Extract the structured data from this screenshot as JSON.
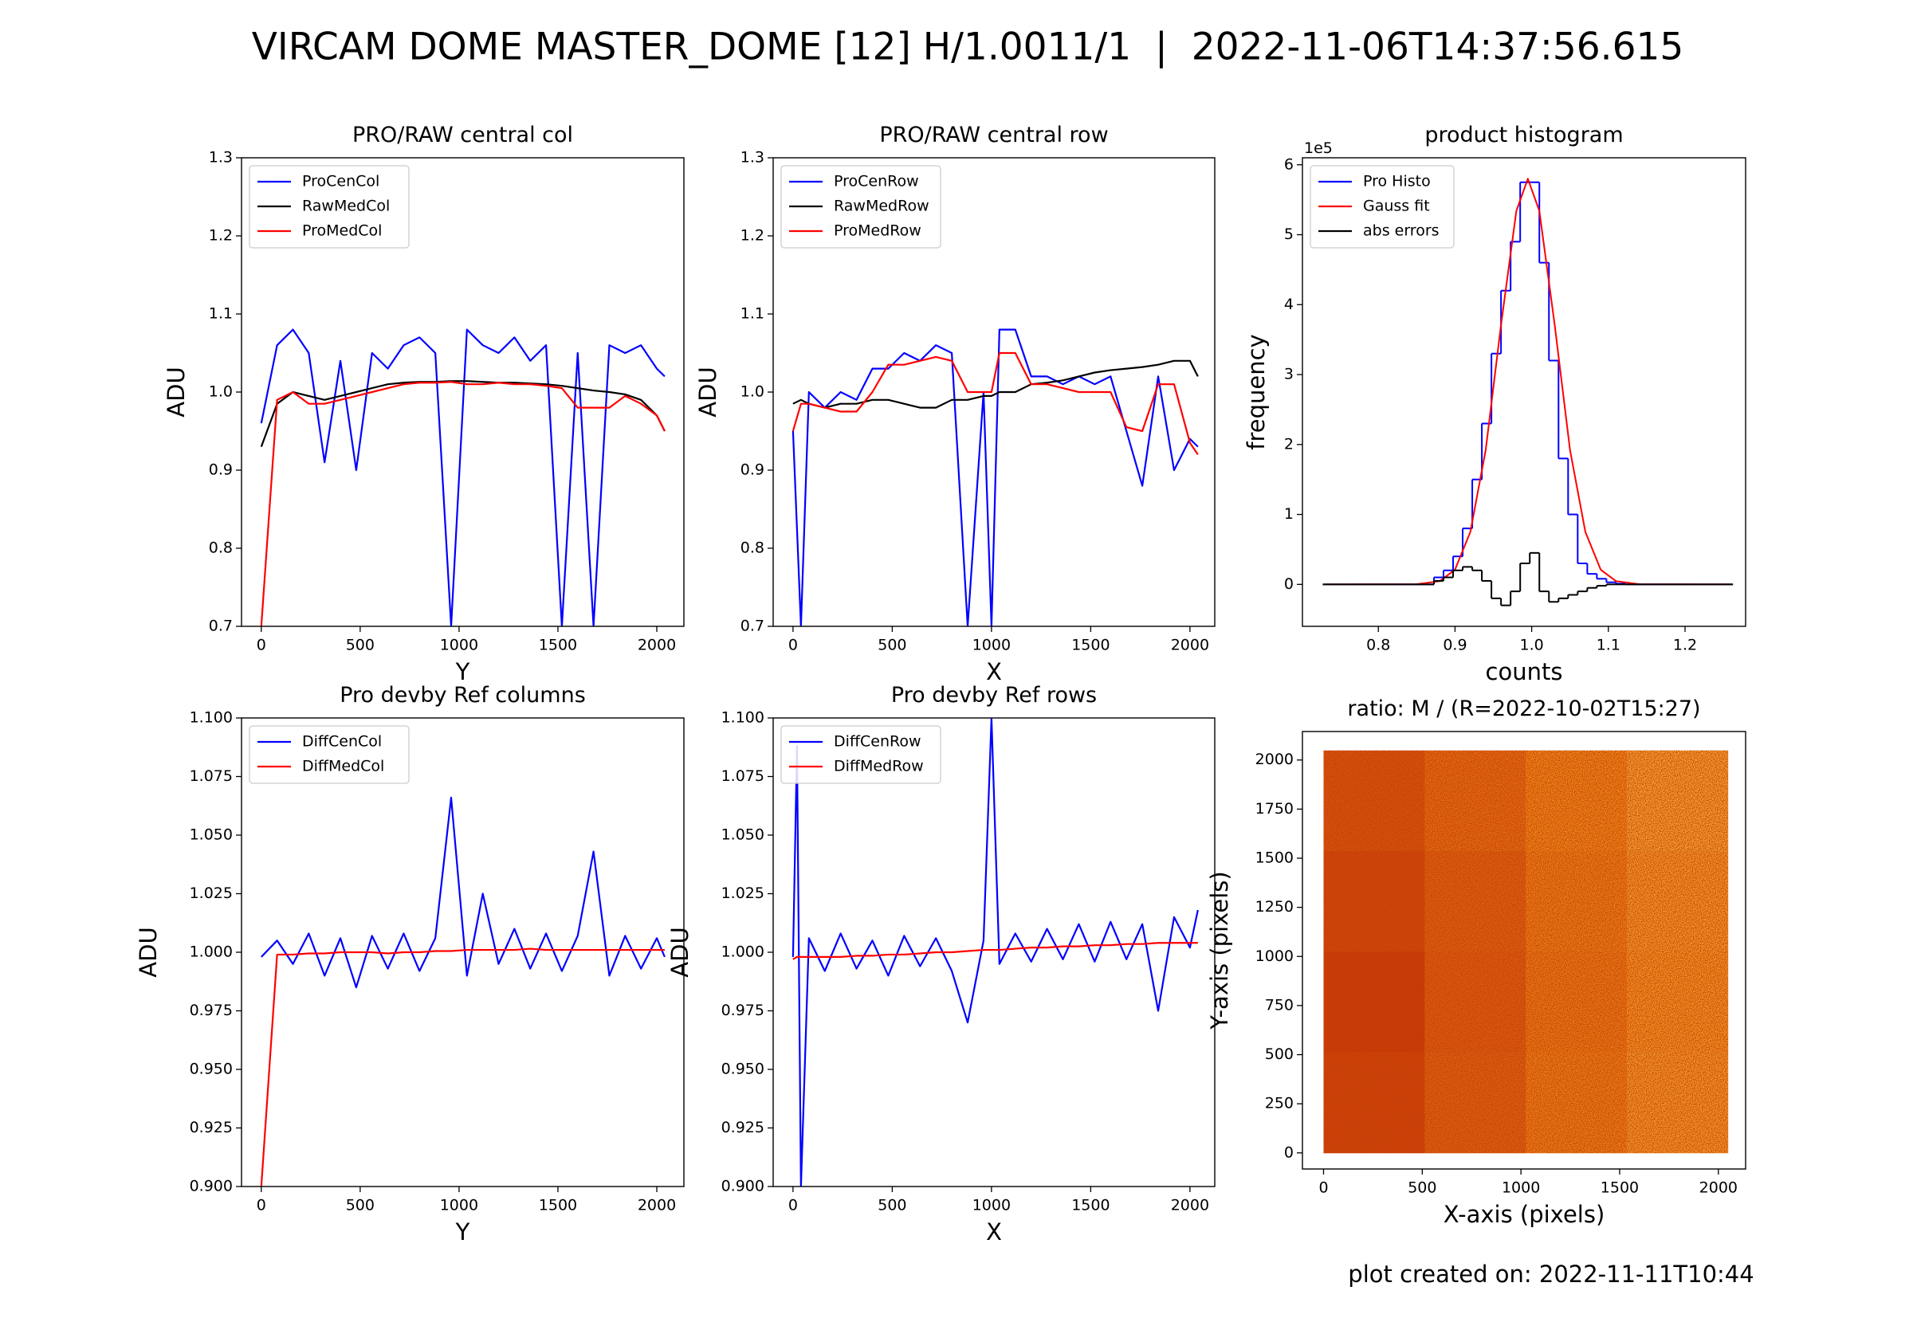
{
  "title": "VIRCAM DOME MASTER_DOME [12] H/1.0011/1  |  2022-11-06T14:37:56.615",
  "footer": "plot created on: 2022-11-11T10:44",
  "chart_data": [
    {
      "type": "line",
      "title": "PRO/RAW central col",
      "xlabel": "Y",
      "ylabel": "ADU",
      "legend": "upper left",
      "xlim": [
        -100,
        2137
      ],
      "ylim": [
        0.7,
        1.3
      ],
      "xticks": [
        0,
        500,
        1000,
        1500,
        2000
      ],
      "yticks": [
        0.7,
        0.8,
        0.9,
        {
          "value": 1,
          "label": "1.0"
        },
        1.1,
        1.2,
        1.3
      ],
      "x": [
        0,
        80,
        160,
        240,
        320,
        400,
        480,
        560,
        640,
        720,
        800,
        880,
        960,
        1040,
        1120,
        1200,
        1280,
        1360,
        1440,
        1520,
        1600,
        1680,
        1760,
        1840,
        1920,
        2000,
        2040
      ],
      "series": [
        {
          "name": "ProCenCol",
          "color": "#0000ff",
          "values": [
            0.96,
            1.06,
            1.08,
            1.05,
            0.91,
            1.04,
            0.9,
            1.05,
            1.03,
            1.06,
            1.07,
            1.05,
            0.7,
            1.08,
            1.06,
            1.05,
            1.07,
            1.04,
            1.06,
            0.7,
            1.05,
            0.7,
            1.06,
            1.05,
            1.06,
            1.03,
            1.02
          ]
        },
        {
          "name": "RawMedCol",
          "color": "#000000",
          "values": [
            0.93,
            0.985,
            1.0,
            0.995,
            0.99,
            0.995,
            1.0,
            1.005,
            1.01,
            1.012,
            1.013,
            1.013,
            1.014,
            1.014,
            1.013,
            1.012,
            1.012,
            1.011,
            1.01,
            1.008,
            1.005,
            1.002,
            1.0,
            0.997,
            0.99,
            0.97,
            0.95
          ]
        },
        {
          "name": "ProMedCol",
          "color": "#ff0000",
          "values": [
            0.7,
            0.99,
            1.0,
            0.985,
            0.985,
            0.99,
            0.995,
            1.0,
            1.005,
            1.01,
            1.012,
            1.012,
            1.013,
            1.01,
            1.01,
            1.012,
            1.01,
            1.01,
            1.008,
            1.005,
            0.98,
            0.98,
            0.98,
            0.995,
            0.985,
            0.97,
            0.95
          ]
        }
      ]
    },
    {
      "type": "line",
      "title": "PRO/RAW central row",
      "xlabel": "X",
      "ylabel": "ADU",
      "legend": "upper left",
      "xlim": [
        -100,
        2125
      ],
      "ylim": [
        0.7,
        1.3
      ],
      "xticks": [
        0,
        500,
        1000,
        1500,
        2000
      ],
      "yticks": [
        0.7,
        0.8,
        0.9,
        {
          "value": 1,
          "label": "1.0"
        },
        1.1,
        1.2,
        1.3
      ],
      "x": [
        0,
        40,
        80,
        160,
        240,
        320,
        400,
        480,
        560,
        640,
        720,
        800,
        880,
        960,
        1000,
        1040,
        1120,
        1200,
        1280,
        1360,
        1440,
        1520,
        1600,
        1680,
        1760,
        1840,
        1920,
        2000,
        2040
      ],
      "series": [
        {
          "name": "ProCenRow",
          "color": "#0000ff",
          "values": [
            0.95,
            0.7,
            1.0,
            0.98,
            1.0,
            0.99,
            1.03,
            1.03,
            1.05,
            1.04,
            1.06,
            1.05,
            0.7,
            1.0,
            0.7,
            1.08,
            1.08,
            1.02,
            1.02,
            1.01,
            1.02,
            1.01,
            1.02,
            0.95,
            0.88,
            1.02,
            0.9,
            0.94,
            0.93
          ]
        },
        {
          "name": "RawMedRow",
          "color": "#000000",
          "values": [
            0.985,
            0.99,
            0.985,
            0.98,
            0.985,
            0.985,
            0.99,
            0.99,
            0.985,
            0.98,
            0.98,
            0.99,
            0.99,
            0.995,
            0.995,
            1.0,
            1.0,
            1.01,
            1.012,
            1.015,
            1.02,
            1.025,
            1.028,
            1.03,
            1.032,
            1.035,
            1.04,
            1.04,
            1.02
          ]
        },
        {
          "name": "ProMedRow",
          "color": "#ff0000",
          "values": [
            0.95,
            0.985,
            0.985,
            0.98,
            0.975,
            0.975,
            1.0,
            1.035,
            1.035,
            1.04,
            1.045,
            1.04,
            1.0,
            1.0,
            1.0,
            1.05,
            1.05,
            1.01,
            1.01,
            1.005,
            1.0,
            1.0,
            1.0,
            0.955,
            0.95,
            1.01,
            1.01,
            0.935,
            0.92
          ]
        }
      ]
    },
    {
      "type": "histogram",
      "title": "product histogram",
      "xlabel": "counts",
      "ylabel": "frequency",
      "y_offset_label": "1e5",
      "legend": "upper left",
      "xlim": [
        0.701,
        1.279
      ],
      "ylim": [
        -0.6,
        6.1
      ],
      "xticks": [
        0.8,
        0.9,
        {
          "value": 1,
          "label": "1.0"
        },
        1.1,
        1.2
      ],
      "yticks": [
        0,
        1,
        2,
        3,
        4,
        5,
        6
      ],
      "bins": [
        0.7275,
        0.8725,
        0.885,
        0.8975,
        0.91,
        0.9225,
        0.935,
        0.9475,
        0.96,
        0.9725,
        0.985,
        0.9975,
        1.01,
        1.0225,
        1.035,
        1.0475,
        1.06,
        1.0725,
        1.085,
        1.0975,
        1.11,
        1.1225,
        1.2625
      ],
      "series": [
        {
          "name": "Pro Histo",
          "color": "#0000ff",
          "values": [
            0,
            0.1,
            0.2,
            0.4,
            0.8,
            1.5,
            2.3,
            3.3,
            4.2,
            4.9,
            5.75,
            5.75,
            4.6,
            3.2,
            1.8,
            1.0,
            0.3,
            0.15,
            0.08,
            0.03,
            0.01,
            0
          ]
        },
        {
          "name": "Gauss fit",
          "color": "#ff0000",
          "x": [
            0.73,
            0.85,
            0.88,
            0.9,
            0.92,
            0.94,
            0.96,
            0.98,
            0.995,
            1.01,
            1.03,
            1.05,
            1.07,
            1.09,
            1.11,
            1.14,
            1.26
          ],
          "values": [
            0,
            0.003,
            0.046,
            0.21,
            0.75,
            1.92,
            3.71,
            5.34,
            5.8,
            5.34,
            3.71,
            1.92,
            0.75,
            0.21,
            0.046,
            0.003,
            0
          ]
        },
        {
          "name": "abs errors",
          "color": "#000000",
          "values": [
            0,
            0.05,
            0.1,
            0.2,
            0.25,
            0.2,
            0.05,
            -0.2,
            -0.3,
            -0.1,
            0.3,
            0.45,
            -0.1,
            -0.25,
            -0.2,
            -0.15,
            -0.1,
            -0.05,
            -0.02,
            0,
            0,
            0
          ]
        }
      ]
    },
    {
      "type": "line",
      "title": "Pro devby Ref columns",
      "xlabel": "Y",
      "ylabel": "ADU",
      "legend": "upper left",
      "xlim": [
        -100,
        2137
      ],
      "ylim": [
        0.9,
        1.1
      ],
      "xticks": [
        0,
        500,
        1000,
        1500,
        2000
      ],
      "yticks": [
        {
          "value": 0.9,
          "label": "0.900"
        },
        {
          "value": 0.925,
          "label": "0.925"
        },
        {
          "value": 0.95,
          "label": "0.950"
        },
        {
          "value": 0.975,
          "label": "0.975"
        },
        {
          "value": 1,
          "label": "1.000"
        },
        {
          "value": 1.025,
          "label": "1.025"
        },
        {
          "value": 1.05,
          "label": "1.050"
        },
        {
          "value": 1.075,
          "label": "1.075"
        },
        {
          "value": 1.1,
          "label": "1.100"
        }
      ],
      "x": [
        0,
        80,
        160,
        240,
        320,
        400,
        480,
        560,
        640,
        720,
        800,
        880,
        960,
        1040,
        1120,
        1200,
        1280,
        1360,
        1440,
        1520,
        1600,
        1680,
        1760,
        1840,
        1920,
        2000,
        2040
      ],
      "series": [
        {
          "name": "DiffCenCol",
          "color": "#0000ff",
          "values": [
            0.998,
            1.005,
            0.995,
            1.008,
            0.99,
            1.006,
            0.985,
            1.007,
            0.993,
            1.008,
            0.992,
            1.006,
            1.066,
            0.99,
            1.025,
            0.995,
            1.01,
            0.993,
            1.008,
            0.992,
            1.007,
            1.043,
            0.99,
            1.007,
            0.993,
            1.006,
            0.998
          ]
        },
        {
          "name": "DiffMedCol",
          "color": "#ff0000",
          "values": [
            0.9,
            0.999,
            0.999,
            0.9995,
            0.9995,
            1.0,
            1.0,
            1.0,
            0.9995,
            1.0,
            1.0,
            1.0005,
            1.0005,
            1.001,
            1.001,
            1.001,
            1.001,
            1.0015,
            1.001,
            1.001,
            1.001,
            1.001,
            1.001,
            1.001,
            1.001,
            1.001,
            1.001
          ]
        }
      ]
    },
    {
      "type": "line",
      "title": "Pro devby Ref rows",
      "xlabel": "X",
      "ylabel": "ADU",
      "legend": "upper left",
      "xlim": [
        -100,
        2125
      ],
      "ylim": [
        0.9,
        1.1
      ],
      "xticks": [
        0,
        500,
        1000,
        1500,
        2000
      ],
      "yticks": [
        {
          "value": 0.9,
          "label": "0.900"
        },
        {
          "value": 0.925,
          "label": "0.925"
        },
        {
          "value": 0.95,
          "label": "0.950"
        },
        {
          "value": 0.975,
          "label": "0.975"
        },
        {
          "value": 1,
          "label": "1.000"
        },
        {
          "value": 1.025,
          "label": "1.025"
        },
        {
          "value": 1.05,
          "label": "1.050"
        },
        {
          "value": 1.075,
          "label": "1.075"
        },
        {
          "value": 1.1,
          "label": "1.100"
        }
      ],
      "x": [
        0,
        20,
        40,
        80,
        160,
        240,
        320,
        400,
        480,
        560,
        640,
        720,
        800,
        880,
        960,
        1000,
        1040,
        1120,
        1200,
        1280,
        1360,
        1440,
        1520,
        1600,
        1680,
        1760,
        1840,
        1920,
        2000,
        2040
      ],
      "series": [
        {
          "name": "DiffCenRow",
          "color": "#0000ff",
          "values": [
            0.998,
            1.088,
            0.9,
            1.006,
            0.992,
            1.008,
            0.993,
            1.005,
            0.99,
            1.007,
            0.994,
            1.006,
            0.992,
            0.97,
            1.005,
            1.1,
            0.995,
            1.008,
            0.996,
            1.01,
            0.997,
            1.012,
            0.996,
            1.013,
            0.997,
            1.012,
            0.975,
            1.015,
            1.002,
            1.018
          ]
        },
        {
          "name": "DiffMedRow",
          "color": "#ff0000",
          "values": [
            0.997,
            0.998,
            0.998,
            0.998,
            0.998,
            0.998,
            0.9985,
            0.9985,
            0.999,
            0.999,
            0.9995,
            1.0,
            1.0,
            1.0005,
            1.001,
            1.001,
            1.001,
            1.0015,
            1.002,
            1.002,
            1.0025,
            1.0025,
            1.003,
            1.003,
            1.0035,
            1.0035,
            1.004,
            1.004,
            1.004,
            1.004
          ]
        }
      ]
    },
    {
      "type": "image",
      "title": "ratio: M / (R=2022-10-02T15:27)",
      "xlabel": "X-axis (pixels)",
      "ylabel": "Y-axis (pixels)",
      "xlim": [
        -107,
        2138
      ],
      "ylim": [
        -82,
        2145
      ],
      "xticks": [
        0,
        500,
        1000,
        1500,
        2000
      ],
      "yticks": [
        0,
        250,
        500,
        750,
        1000,
        1250,
        1500,
        1750,
        2000
      ],
      "extent": [
        0,
        2048,
        0,
        2048
      ],
      "colormap": "hot",
      "zlim": [
        0,
        1
      ],
      "z": [
        [
          0.45,
          0.55,
          0.65,
          0.75
        ],
        [
          0.4,
          0.5,
          0.62,
          0.72
        ],
        [
          0.35,
          0.48,
          0.6,
          0.7
        ],
        [
          0.38,
          0.5,
          0.62,
          0.72
        ]
      ]
    }
  ]
}
